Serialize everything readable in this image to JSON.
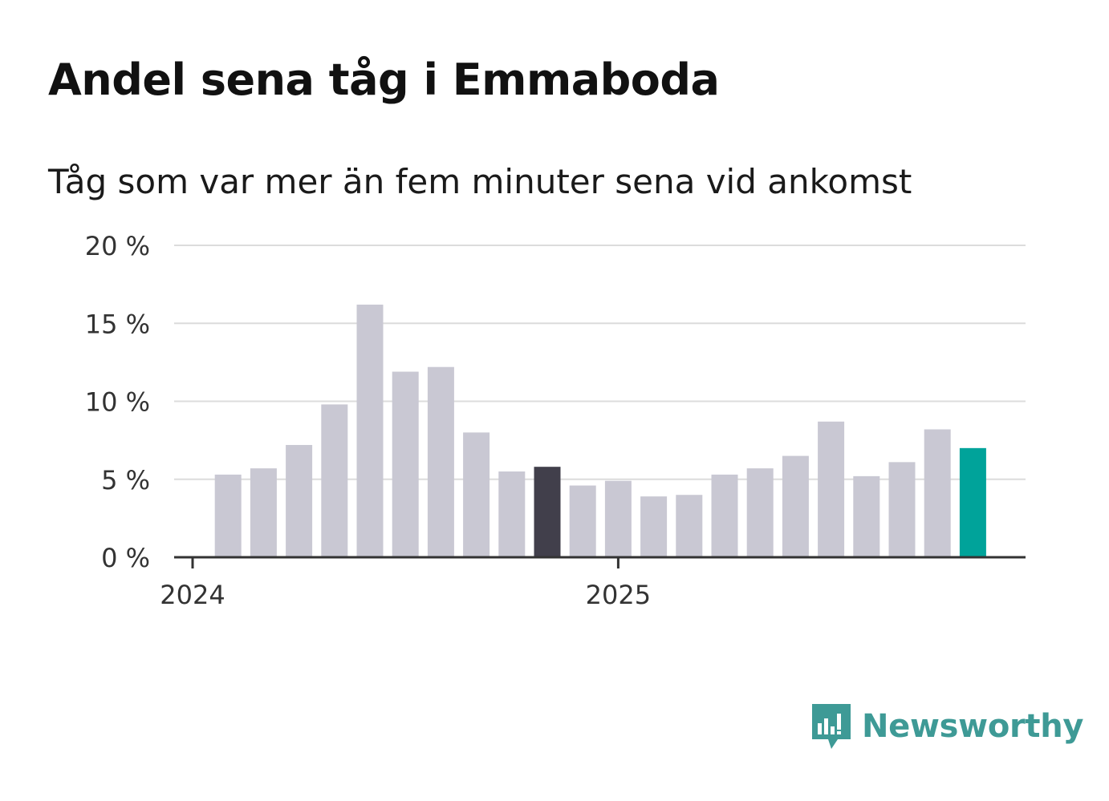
{
  "header": {
    "title": "Andel sena tåg i Emmaboda",
    "subtitle": "Tåg som var mer än fem minuter sena vid ankomst"
  },
  "brand": {
    "name": "Newsworthy",
    "icon": "newsworthy-logo-icon",
    "color": "#3e9a96"
  },
  "chart_data": {
    "type": "bar",
    "title": "Andel sena tåg i Emmaboda",
    "subtitle": "Tåg som var mer än fem minuter sena vid ankomst",
    "unit": "%",
    "x": [
      "2024-02",
      "2024-03",
      "2024-04",
      "2024-05",
      "2024-06",
      "2024-07",
      "2024-08",
      "2024-09",
      "2024-10",
      "2024-11",
      "2024-12",
      "2025-01",
      "2025-02",
      "2025-03",
      "2025-04",
      "2025-05",
      "2025-06",
      "2025-07",
      "2025-08",
      "2025-09",
      "2025-10",
      "2025-11"
    ],
    "values": [
      5.3,
      5.7,
      7.2,
      9.8,
      16.2,
      11.9,
      12.2,
      8.0,
      5.5,
      5.8,
      4.6,
      4.9,
      3.9,
      4.0,
      5.3,
      5.7,
      6.5,
      8.7,
      5.2,
      6.1,
      8.2,
      7.0
    ],
    "highlight": {
      "dark_index": 9,
      "accent_index": 21
    },
    "colors": {
      "default": "#c9c8d3",
      "dark": "#413f4b",
      "accent": "#00a39a",
      "grid": "#dcdcdc",
      "axis": "#333333"
    },
    "ylim": [
      0,
      20
    ],
    "yticks": [
      0,
      5,
      10,
      15,
      20
    ],
    "ytick_labels": [
      "0 %",
      "5 %",
      "10 %",
      "15 %",
      "20 %"
    ],
    "xticks": [
      {
        "at": "2024-01",
        "label": "2024"
      },
      {
        "at": "2025-01",
        "label": "2025"
      }
    ],
    "grid": true,
    "legend": "none"
  }
}
